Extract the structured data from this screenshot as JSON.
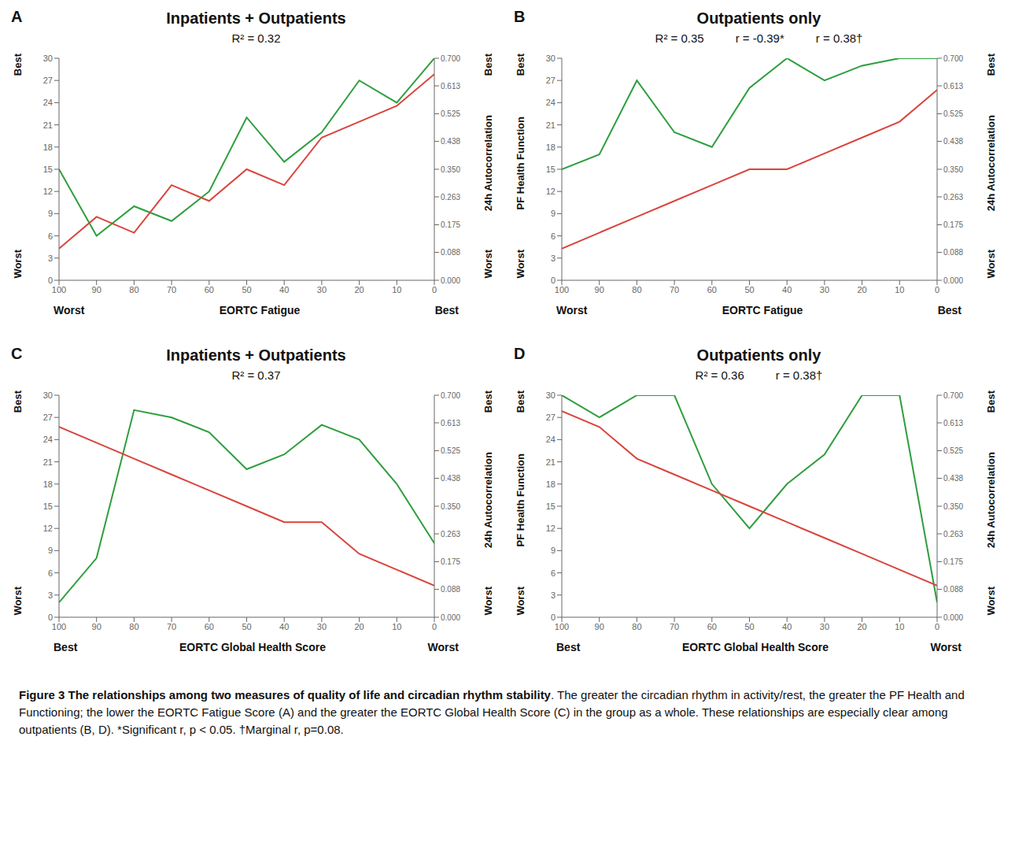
{
  "chart_data": [
    {
      "panel": "A",
      "type": "line",
      "title": "Inpatients + Outpatients",
      "annotations": [
        "R² = 0.32"
      ],
      "xlabel": "EORTC Fatigue",
      "x_end_labels": [
        "Worst",
        "Best"
      ],
      "y_end_labels": [
        "Worst",
        "Best"
      ],
      "y2label": "24h Autocorrelation",
      "y2_end_labels": [
        "Worst",
        "Best"
      ],
      "x": [
        100,
        90,
        80,
        70,
        60,
        50,
        40,
        30,
        20,
        10,
        0
      ],
      "xlim": [
        100,
        0
      ],
      "xticks": [
        100,
        90,
        80,
        70,
        60,
        50,
        40,
        30,
        20,
        10,
        0
      ],
      "ylim": [
        0,
        30
      ],
      "yticks": [
        0,
        3,
        6,
        9,
        12,
        15,
        18,
        21,
        24,
        27,
        30
      ],
      "y2lim": [
        0,
        0.7
      ],
      "y2ticks": [
        {
          "value": 0,
          "label": "0.000"
        },
        {
          "value": 0.088,
          "label": "0.088"
        },
        {
          "value": 0.175,
          "label": "0.175"
        },
        {
          "value": 0.263,
          "label": "0.263"
        },
        {
          "value": 0.35,
          "label": "0.350"
        },
        {
          "value": 0.438,
          "label": "0.438"
        },
        {
          "value": 0.525,
          "label": "0.525"
        },
        {
          "value": 0.613,
          "label": "0.613"
        },
        {
          "value": 0.7,
          "label": "0.700"
        }
      ],
      "series": [
        {
          "color": "#2e9e3e",
          "values": [
            15,
            6,
            10,
            8,
            12,
            22,
            16,
            20,
            27,
            24,
            30
          ]
        },
        {
          "color": "#d9443c",
          "axis": "y2",
          "values": [
            0.1,
            0.2,
            0.15,
            0.3,
            0.25,
            0.35,
            0.3,
            0.45,
            0.5,
            0.55,
            0.65
          ]
        }
      ]
    },
    {
      "panel": "B",
      "type": "line",
      "title": "Outpatients only",
      "annotations": [
        "R² = 0.35",
        "r = -0.39*",
        "r = 0.38†"
      ],
      "xlabel": "EORTC Fatigue",
      "x_end_labels": [
        "Worst",
        "Best"
      ],
      "ylabel": "PF Health Function",
      "y_end_labels": [
        "Worst",
        "Best"
      ],
      "y2label": "24h Autocorrelation",
      "y2_end_labels": [
        "Worst",
        "Best"
      ],
      "x": [
        100,
        90,
        80,
        70,
        60,
        50,
        40,
        30,
        20,
        10,
        0
      ],
      "xlim": [
        100,
        0
      ],
      "xticks": [
        100,
        90,
        80,
        70,
        60,
        50,
        40,
        30,
        20,
        10,
        0
      ],
      "ylim": [
        0,
        30
      ],
      "yticks": [
        0,
        3,
        6,
        9,
        12,
        15,
        18,
        21,
        24,
        27,
        30
      ],
      "y2lim": [
        0,
        0.7
      ],
      "y2ticks": [
        {
          "value": 0,
          "label": "0.000"
        },
        {
          "value": 0.088,
          "label": "0.088"
        },
        {
          "value": 0.175,
          "label": "0.175"
        },
        {
          "value": 0.263,
          "label": "0.263"
        },
        {
          "value": 0.35,
          "label": "0.350"
        },
        {
          "value": 0.438,
          "label": "0.438"
        },
        {
          "value": 0.525,
          "label": "0.525"
        },
        {
          "value": 0.613,
          "label": "0.613"
        },
        {
          "value": 0.7,
          "label": "0.700"
        }
      ],
      "series": [
        {
          "color": "#2e9e3e",
          "values": [
            15,
            17,
            27,
            20,
            18,
            26,
            30,
            27,
            29,
            30,
            30
          ]
        },
        {
          "color": "#d9443c",
          "axis": "y2",
          "values": [
            0.1,
            0.15,
            0.2,
            0.25,
            0.3,
            0.35,
            0.35,
            0.4,
            0.45,
            0.5,
            0.6
          ]
        }
      ]
    },
    {
      "panel": "C",
      "type": "line",
      "title": "Inpatients + Outpatients",
      "annotations": [
        "R² = 0.37"
      ],
      "xlabel": "EORTC Global Health Score",
      "x_end_labels": [
        "Best",
        "Worst"
      ],
      "y_end_labels": [
        "Worst",
        "Best"
      ],
      "y2label": "24h Autocorrelation",
      "y2_end_labels": [
        "Worst",
        "Best"
      ],
      "x": [
        100,
        90,
        80,
        70,
        60,
        50,
        40,
        30,
        20,
        10,
        0
      ],
      "xlim": [
        100,
        0
      ],
      "xticks": [
        100,
        90,
        80,
        70,
        60,
        50,
        40,
        30,
        20,
        10,
        0
      ],
      "ylim": [
        0,
        30
      ],
      "yticks": [
        0,
        3,
        6,
        9,
        12,
        15,
        18,
        21,
        24,
        27,
        30
      ],
      "y2lim": [
        0,
        0.7
      ],
      "y2ticks": [
        {
          "value": 0,
          "label": "0.000"
        },
        {
          "value": 0.088,
          "label": "0.088"
        },
        {
          "value": 0.175,
          "label": "0.175"
        },
        {
          "value": 0.263,
          "label": "0.263"
        },
        {
          "value": 0.35,
          "label": "0.350"
        },
        {
          "value": 0.438,
          "label": "0.438"
        },
        {
          "value": 0.525,
          "label": "0.525"
        },
        {
          "value": 0.613,
          "label": "0.613"
        },
        {
          "value": 0.7,
          "label": "0.700"
        }
      ],
      "series": [
        {
          "color": "#2e9e3e",
          "values": [
            2,
            8,
            28,
            27,
            25,
            20,
            22,
            26,
            24,
            18,
            10
          ]
        },
        {
          "color": "#d9443c",
          "axis": "y2",
          "values": [
            0.6,
            0.55,
            0.5,
            0.45,
            0.4,
            0.35,
            0.3,
            0.3,
            0.2,
            0.15,
            0.1
          ]
        }
      ]
    },
    {
      "panel": "D",
      "type": "line",
      "title": "Outpatients only",
      "annotations": [
        "R² = 0.36",
        "r = 0.38†"
      ],
      "xlabel": "EORTC Global Health Score",
      "x_end_labels": [
        "Best",
        "Worst"
      ],
      "ylabel": "PF Health Function",
      "y_end_labels": [
        "Worst",
        "Best"
      ],
      "y2label": "24h Autocorrelation",
      "y2_end_labels": [
        "Worst",
        "Best"
      ],
      "x": [
        100,
        90,
        80,
        70,
        60,
        50,
        40,
        30,
        20,
        10,
        0
      ],
      "xlim": [
        100,
        0
      ],
      "xticks": [
        100,
        90,
        80,
        70,
        60,
        50,
        40,
        30,
        20,
        10,
        0
      ],
      "ylim": [
        0,
        30
      ],
      "yticks": [
        0,
        3,
        6,
        9,
        12,
        15,
        18,
        21,
        24,
        27,
        30
      ],
      "y2lim": [
        0,
        0.7
      ],
      "y2ticks": [
        {
          "value": 0,
          "label": "0.000"
        },
        {
          "value": 0.088,
          "label": "0.088"
        },
        {
          "value": 0.175,
          "label": "0.175"
        },
        {
          "value": 0.263,
          "label": "0.263"
        },
        {
          "value": 0.35,
          "label": "0.350"
        },
        {
          "value": 0.438,
          "label": "0.438"
        },
        {
          "value": 0.525,
          "label": "0.525"
        },
        {
          "value": 0.613,
          "label": "0.613"
        },
        {
          "value": 0.7,
          "label": "0.700"
        }
      ],
      "series": [
        {
          "color": "#2e9e3e",
          "values": [
            30,
            27,
            30,
            30,
            18,
            12,
            18,
            22,
            30,
            30,
            2
          ]
        },
        {
          "color": "#d9443c",
          "axis": "y2",
          "values": [
            0.65,
            0.6,
            0.5,
            0.45,
            0.4,
            0.35,
            0.3,
            0.25,
            0.2,
            0.15,
            0.1
          ]
        }
      ]
    }
  ],
  "caption": {
    "title": "Figure 3 The relationships among two measures of quality of life and circadian rhythm stability",
    "text": ". The greater the circadian rhythm in activity/rest, the greater the PF Health and Functioning; the lower the EORTC Fatigue Score (A) and the greater the EORTC Global Health Score (C) in the group as a whole. These relationships are especially clear among outpatients (B, D). *Significant r, p < 0.05. †Marginal r, p=0.08."
  }
}
